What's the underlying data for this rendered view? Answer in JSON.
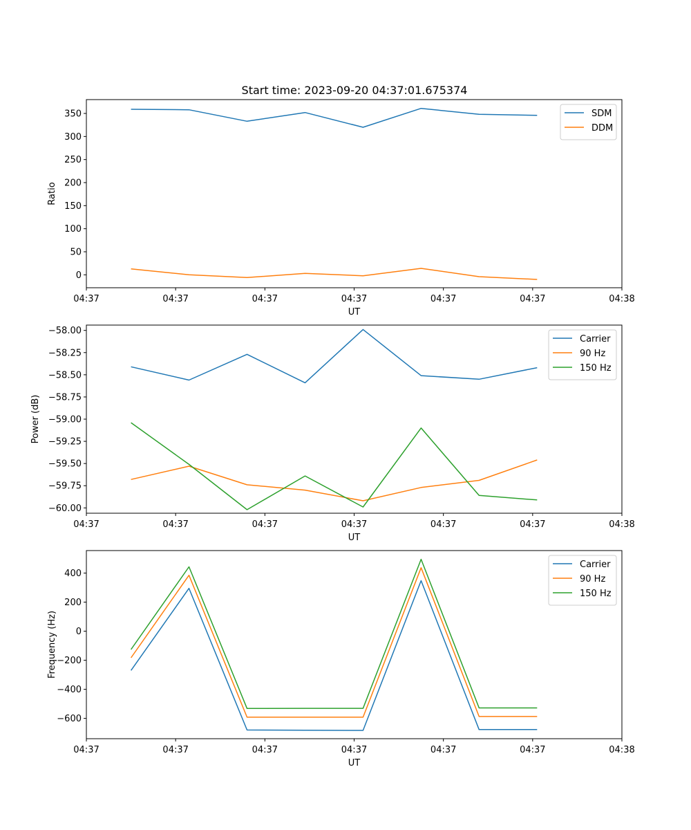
{
  "title": "Start time: 2023-09-20 04:37:01.675374",
  "chart_data": [
    {
      "type": "line",
      "xlabel": "UT",
      "ylabel": "Ratio",
      "xlim": [
        0,
        60
      ],
      "ylim": [
        -28,
        380
      ],
      "yticks": [
        0,
        50,
        100,
        150,
        200,
        250,
        300,
        350
      ],
      "ytick_labels": [
        "0",
        "50",
        "100",
        "150",
        "200",
        "250",
        "300",
        "350"
      ],
      "xticks": [
        0,
        10,
        20,
        30,
        40,
        50,
        60
      ],
      "xtick_labels": [
        "04:37",
        "04:37",
        "04:37",
        "04:37",
        "04:37",
        "04:37",
        "04:38"
      ],
      "x": [
        5,
        11.5,
        18,
        24.5,
        31,
        37.5,
        44,
        50.5
      ],
      "legend_position": "upper right",
      "series": [
        {
          "name": "SDM",
          "color": "#1f77b4",
          "values": [
            359,
            358,
            333,
            352,
            320,
            361,
            348,
            346
          ]
        },
        {
          "name": "DDM",
          "color": "#ff7f0e",
          "values": [
            13,
            0,
            -6,
            3,
            -2,
            14,
            -4,
            -10
          ]
        }
      ]
    },
    {
      "type": "line",
      "xlabel": "UT",
      "ylabel": "Power (dB)",
      "xlim": [
        0,
        60
      ],
      "ylim": [
        -60.06,
        -57.94
      ],
      "yticks": [
        -60.0,
        -59.75,
        -59.5,
        -59.25,
        -59.0,
        -58.75,
        -58.5,
        -58.25,
        -58.0
      ],
      "ytick_labels": [
        "−60.00",
        "−59.75",
        "−59.50",
        "−59.25",
        "−59.00",
        "−58.75",
        "−58.50",
        "−58.25",
        "−58.00"
      ],
      "xticks": [
        0,
        10,
        20,
        30,
        40,
        50,
        60
      ],
      "xtick_labels": [
        "04:37",
        "04:37",
        "04:37",
        "04:37",
        "04:37",
        "04:37",
        "04:38"
      ],
      "x": [
        5,
        11.5,
        18,
        24.5,
        31,
        37.5,
        44,
        50.5
      ],
      "legend_position": "upper right",
      "series": [
        {
          "name": "Carrier",
          "color": "#1f77b4",
          "values": [
            -58.41,
            -58.56,
            -58.27,
            -58.59,
            -57.99,
            -58.51,
            -58.55,
            -58.42
          ]
        },
        {
          "name": "90 Hz",
          "color": "#ff7f0e",
          "values": [
            -59.68,
            -59.53,
            -59.74,
            -59.8,
            -59.92,
            -59.77,
            -59.69,
            -59.46
          ]
        },
        {
          "name": "150 Hz",
          "color": "#2ca02c",
          "values": [
            -59.04,
            -59.51,
            -60.02,
            -59.64,
            -59.99,
            -59.1,
            -59.86,
            -59.91
          ]
        }
      ]
    },
    {
      "type": "line",
      "xlabel": "UT",
      "ylabel": "Frequency (Hz)",
      "xlim": [
        0,
        60
      ],
      "ylim": [
        -740,
        555
      ],
      "yticks": [
        -600,
        -400,
        -200,
        0,
        200,
        400
      ],
      "ytick_labels": [
        "−600",
        "−400",
        "−200",
        "0",
        "200",
        "400"
      ],
      "xticks": [
        0,
        10,
        20,
        30,
        40,
        50,
        60
      ],
      "xtick_labels": [
        "04:37",
        "04:37",
        "04:37",
        "04:37",
        "04:37",
        "04:37",
        "04:38"
      ],
      "x": [
        5,
        11.5,
        18,
        24.5,
        31,
        37.5,
        44,
        50.5
      ],
      "legend_position": "upper right",
      "series": [
        {
          "name": "Carrier",
          "color": "#1f77b4",
          "values": [
            -270,
            295,
            -680,
            -682,
            -683,
            348,
            -677,
            -677
          ]
        },
        {
          "name": "90 Hz",
          "color": "#ff7f0e",
          "values": [
            -183,
            385,
            -592,
            -592,
            -592,
            437,
            -587,
            -587
          ]
        },
        {
          "name": "150 Hz",
          "color": "#2ca02c",
          "values": [
            -126,
            443,
            -532,
            -531,
            -531,
            495,
            -528,
            -528
          ]
        }
      ]
    }
  ]
}
